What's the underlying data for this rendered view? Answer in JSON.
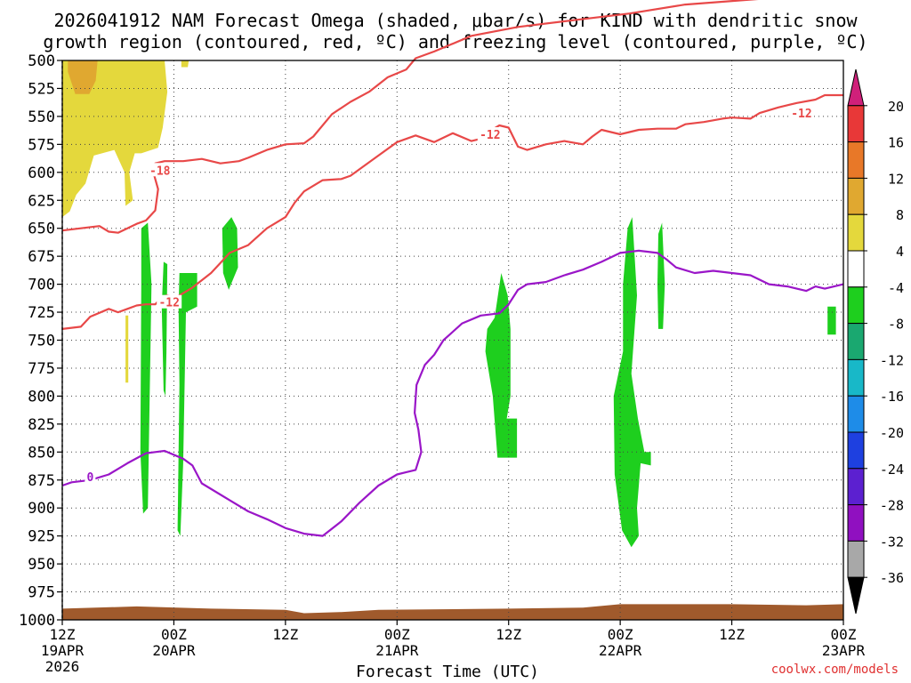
{
  "title_line1": "2026041912 NAM Forecast Omega (shaded, μbar/s) for KIND with dendritic snow",
  "title_line2": "growth region (contoured, red, ºC) and freezing level (contoured, purple, ºC)",
  "credit": "coolwx.com/models",
  "chart_data": {
    "type": "heatmap",
    "xlabel": "Forecast Time (UTC)",
    "ylabel": "",
    "x_ticks": [
      {
        "hour": 0,
        "label": "12Z",
        "sub": "19APR",
        "sub2": "2026"
      },
      {
        "hour": 12,
        "label": "00Z",
        "sub": "20APR",
        "sub2": ""
      },
      {
        "hour": 24,
        "label": "12Z",
        "sub": "",
        "sub2": ""
      },
      {
        "hour": 36,
        "label": "00Z",
        "sub": "21APR",
        "sub2": ""
      },
      {
        "hour": 48,
        "label": "12Z",
        "sub": "",
        "sub2": ""
      },
      {
        "hour": 60,
        "label": "00Z",
        "sub": "22APR",
        "sub2": ""
      },
      {
        "hour": 72,
        "label": "12Z",
        "sub": "",
        "sub2": ""
      },
      {
        "hour": 84,
        "label": "00Z",
        "sub": "23APR",
        "sub2": ""
      }
    ],
    "xlim": [
      0,
      84
    ],
    "ylim_hpa": [
      500,
      1000
    ],
    "y_ticks": [
      500,
      525,
      550,
      575,
      600,
      625,
      650,
      675,
      700,
      725,
      750,
      775,
      800,
      825,
      850,
      875,
      900,
      925,
      950,
      975,
      1000
    ],
    "grid": true,
    "colorbar": {
      "labels": [
        20,
        16,
        12,
        8,
        4,
        -4,
        -8,
        -12,
        -16,
        -20,
        -24,
        -28,
        -32,
        -36
      ],
      "colors": [
        "#d0207a",
        "#e83838",
        "#e87828",
        "#e0a830",
        "#e4d83c",
        "#ffffff",
        "#1ecf1e",
        "#1aa870",
        "#18b8c8",
        "#1e8ce8",
        "#1e40e0",
        "#5c20d0",
        "#9010c0",
        "#a8a8a8",
        "#000000"
      ]
    },
    "omega_regions": [
      {
        "value": "4 to 8",
        "color": "#e4d83c",
        "points": [
          [
            0,
            500
          ],
          [
            11,
            500
          ],
          [
            11.3,
            528
          ],
          [
            10.8,
            560
          ],
          [
            10.3,
            578
          ],
          [
            8.5,
            583
          ],
          [
            7.8,
            583
          ],
          [
            7.2,
            600
          ],
          [
            7.6,
            625
          ],
          [
            6.8,
            630
          ],
          [
            6.7,
            600
          ],
          [
            5.6,
            580
          ],
          [
            3.4,
            585
          ],
          [
            2.5,
            610
          ],
          [
            1.5,
            620
          ],
          [
            0.8,
            635
          ],
          [
            0,
            640
          ]
        ]
      },
      {
        "value": "8 to 12",
        "color": "#e0a830",
        "points": [
          [
            0.6,
            500
          ],
          [
            3.8,
            500
          ],
          [
            3.6,
            518
          ],
          [
            2.9,
            530
          ],
          [
            1.4,
            530
          ],
          [
            0.6,
            510
          ]
        ]
      },
      {
        "value": "4 to 8",
        "color": "#e4d83c",
        "points": [
          [
            12.8,
            500
          ],
          [
            13.6,
            500
          ],
          [
            13.5,
            506
          ],
          [
            12.8,
            506
          ]
        ]
      },
      {
        "value": "-4 to -8",
        "color": "#1ecf1e",
        "points": [
          [
            8.5,
            650
          ],
          [
            9.2,
            645
          ],
          [
            9.6,
            700
          ],
          [
            9.2,
            900
          ],
          [
            8.7,
            905
          ],
          [
            8.4,
            850
          ],
          [
            8.5,
            700
          ]
        ]
      },
      {
        "value": "-4 to -8",
        "color": "#1ecf1e",
        "points": [
          [
            10.9,
            680
          ],
          [
            11.3,
            682
          ],
          [
            11.2,
            760
          ],
          [
            11.1,
            800
          ],
          [
            10.9,
            795
          ],
          [
            10.7,
            720
          ]
        ]
      },
      {
        "value": "-4 to -8",
        "color": "#1ecf1e",
        "points": [
          [
            12.6,
            690
          ],
          [
            14.5,
            690
          ],
          [
            14.5,
            720
          ],
          [
            13.3,
            725
          ],
          [
            13,
            860
          ],
          [
            12.7,
            925
          ],
          [
            12.4,
            920
          ],
          [
            12.6,
            790
          ],
          [
            12.5,
            720
          ]
        ]
      },
      {
        "value": "-4 to -8",
        "color": "#1ecf1e",
        "points": [
          [
            17.2,
            650
          ],
          [
            18.2,
            640
          ],
          [
            18.8,
            650
          ],
          [
            18.9,
            685
          ],
          [
            17.9,
            705
          ],
          [
            17.3,
            690
          ]
        ]
      },
      {
        "value": "-4 to -8",
        "color": "#1ecf1e",
        "points": [
          [
            46.5,
            730
          ],
          [
            47.2,
            690
          ],
          [
            47.9,
            710
          ],
          [
            48.2,
            740
          ],
          [
            48.2,
            800
          ],
          [
            47.8,
            820
          ],
          [
            48.9,
            820
          ],
          [
            48.9,
            855
          ],
          [
            46.8,
            855
          ],
          [
            46.3,
            800
          ],
          [
            45.5,
            760
          ],
          [
            45.7,
            740
          ]
        ]
      },
      {
        "value": "-4 to -8",
        "color": "#1ecf1e",
        "points": [
          [
            60.8,
            650
          ],
          [
            61.3,
            640
          ],
          [
            61.8,
            710
          ],
          [
            61.2,
            780
          ],
          [
            61.9,
            820
          ],
          [
            62.6,
            850
          ],
          [
            63.3,
            850
          ],
          [
            63.3,
            862
          ],
          [
            62.2,
            860
          ],
          [
            61.8,
            900
          ],
          [
            62,
            925
          ],
          [
            61.2,
            935
          ],
          [
            60.2,
            920
          ],
          [
            59.4,
            870
          ],
          [
            59.3,
            800
          ],
          [
            60.3,
            760
          ],
          [
            60.3,
            700
          ]
        ]
      },
      {
        "value": "-4 to -8",
        "color": "#1ecf1e",
        "points": [
          [
            64.1,
            655
          ],
          [
            64.5,
            645
          ],
          [
            64.8,
            700
          ],
          [
            64.6,
            740
          ],
          [
            64.1,
            740
          ],
          [
            64,
            700
          ]
        ]
      },
      {
        "value": "-4 to -8",
        "color": "#1ecf1e",
        "points": [
          [
            82.3,
            720
          ],
          [
            83.2,
            720
          ],
          [
            83.2,
            745
          ],
          [
            82.3,
            745
          ]
        ]
      },
      {
        "value": "4 to 8",
        "color": "#e4d83c",
        "points": [
          [
            6.8,
            728
          ],
          [
            7.1,
            728
          ],
          [
            7.1,
            788
          ],
          [
            6.8,
            788
          ]
        ]
      }
    ],
    "ground": {
      "color": "#a05a2c",
      "top_hpa": [
        [
          0,
          990
        ],
        [
          8,
          988
        ],
        [
          16,
          990
        ],
        [
          24,
          991
        ],
        [
          26,
          994
        ],
        [
          30,
          993
        ],
        [
          34,
          991
        ],
        [
          48,
          990
        ],
        [
          56,
          989
        ],
        [
          60,
          986
        ],
        [
          72,
          986
        ],
        [
          80,
          987
        ],
        [
          84,
          986
        ]
      ]
    },
    "contours": [
      {
        "name": "",
        "label": "-18",
        "color": "#e84848",
        "label_at": [
          10.5,
          598
        ],
        "points": [
          [
            0,
            652
          ],
          [
            2,
            650
          ],
          [
            4,
            648
          ],
          [
            5,
            653
          ],
          [
            6,
            654
          ],
          [
            7,
            650
          ],
          [
            8,
            646
          ],
          [
            9,
            643
          ],
          [
            10,
            634
          ],
          [
            10.3,
            615
          ],
          [
            9.8,
            600
          ],
          [
            10,
            592
          ],
          [
            11,
            590
          ],
          [
            13,
            590
          ],
          [
            15,
            588
          ],
          [
            17,
            592
          ],
          [
            19,
            590
          ],
          [
            20,
            587
          ],
          [
            22,
            580
          ],
          [
            24,
            575
          ],
          [
            26,
            574
          ],
          [
            27,
            568
          ],
          [
            29,
            548
          ],
          [
            31,
            537
          ],
          [
            33,
            528
          ],
          [
            35,
            515
          ],
          [
            37,
            508
          ],
          [
            38,
            498
          ],
          [
            40,
            492
          ],
          [
            44,
            478
          ],
          [
            49,
            470
          ],
          [
            55,
            464
          ],
          [
            61,
            458
          ],
          [
            67,
            450
          ],
          [
            75,
            445
          ],
          [
            84,
            440
          ]
        ]
      },
      {
        "name": "",
        "label": "-12",
        "color": "#e84848",
        "label_at": [
          11.5,
          716
        ],
        "points": [
          [
            0,
            740
          ],
          [
            2,
            738
          ],
          [
            3,
            729
          ],
          [
            5,
            722
          ],
          [
            6,
            725
          ],
          [
            7,
            722
          ],
          [
            8,
            719
          ],
          [
            9,
            718
          ],
          [
            10,
            718
          ],
          [
            10.7,
            712
          ],
          [
            11.2,
            710
          ],
          [
            12.2,
            712
          ],
          [
            14,
            703
          ],
          [
            16,
            690
          ],
          [
            17,
            681
          ],
          [
            18,
            672
          ],
          [
            20,
            665
          ],
          [
            22,
            650
          ],
          [
            24,
            640
          ],
          [
            25,
            627
          ],
          [
            26,
            617
          ],
          [
            28,
            607
          ],
          [
            30,
            606
          ],
          [
            31,
            603
          ],
          [
            32,
            597
          ],
          [
            34,
            585
          ],
          [
            36,
            573
          ],
          [
            38,
            567
          ],
          [
            40,
            573
          ],
          [
            42,
            565
          ],
          [
            44,
            572
          ],
          [
            45,
            570
          ],
          [
            46,
            563
          ],
          [
            47,
            558
          ],
          [
            48,
            560
          ],
          [
            49,
            577
          ],
          [
            50,
            580
          ],
          [
            52,
            575
          ],
          [
            54,
            572
          ],
          [
            56,
            575
          ],
          [
            57,
            568
          ],
          [
            58,
            562
          ],
          [
            60,
            566
          ],
          [
            62,
            562
          ],
          [
            64,
            561
          ],
          [
            66,
            561
          ],
          [
            67,
            557
          ],
          [
            69,
            555
          ],
          [
            71,
            552
          ],
          [
            72,
            551
          ],
          [
            74,
            552
          ],
          [
            75,
            547
          ],
          [
            77,
            542
          ],
          [
            79,
            538
          ],
          [
            81,
            535
          ],
          [
            82,
            531
          ],
          [
            84,
            531
          ]
        ]
      },
      {
        "name": "",
        "label": "-12",
        "color": "#e84848",
        "label_at": [
          46,
          566
        ],
        "points": []
      },
      {
        "name": "",
        "label": "-12",
        "color": "#e84848",
        "label_at": [
          79.5,
          547
        ],
        "points": []
      },
      {
        "name": "",
        "label": "0",
        "color": "#9a16c8",
        "label_at": [
          3,
          872
        ],
        "points": [
          [
            0,
            880
          ],
          [
            1,
            877
          ],
          [
            3,
            875
          ],
          [
            5,
            870
          ],
          [
            7,
            860
          ],
          [
            9,
            851
          ],
          [
            10,
            850
          ],
          [
            11,
            849
          ],
          [
            13,
            856
          ],
          [
            14,
            862
          ],
          [
            15,
            878
          ],
          [
            18,
            893
          ],
          [
            20,
            903
          ],
          [
            22,
            910
          ],
          [
            24,
            918
          ],
          [
            26,
            923
          ],
          [
            28,
            925
          ],
          [
            30,
            912
          ],
          [
            32,
            895
          ],
          [
            34,
            880
          ],
          [
            36,
            870
          ],
          [
            37,
            868
          ],
          [
            38,
            866
          ],
          [
            38.6,
            850
          ],
          [
            38.3,
            830
          ],
          [
            37.9,
            815
          ],
          [
            38.1,
            790
          ],
          [
            39,
            772
          ],
          [
            40,
            763
          ],
          [
            41,
            750
          ],
          [
            43,
            735
          ],
          [
            45,
            728
          ],
          [
            47,
            726
          ],
          [
            48,
            718
          ],
          [
            49,
            705
          ],
          [
            50,
            700
          ],
          [
            52,
            698
          ],
          [
            54,
            692
          ],
          [
            56,
            687
          ],
          [
            58,
            680
          ],
          [
            60,
            672
          ],
          [
            62,
            670
          ],
          [
            64,
            672
          ],
          [
            65,
            678
          ],
          [
            66,
            685
          ],
          [
            68,
            690
          ],
          [
            70,
            688
          ],
          [
            72,
            690
          ],
          [
            74,
            692
          ],
          [
            76,
            700
          ],
          [
            78,
            702
          ],
          [
            80,
            706
          ],
          [
            81,
            702
          ],
          [
            82,
            704
          ],
          [
            84,
            700
          ]
        ]
      }
    ]
  }
}
